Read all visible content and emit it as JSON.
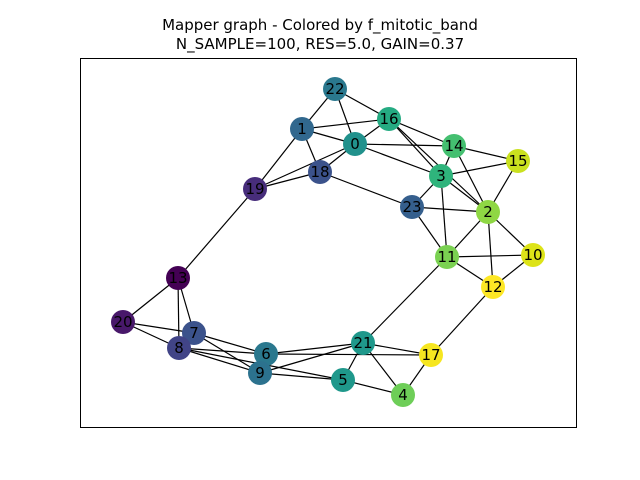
{
  "title_line_1": "Mapper graph - Colored by f_mitotic_band",
  "title_line_2": "N_SAMPLE=100, RES=5.0, GAIN=0.37",
  "nodes": [
    {
      "id": "0",
      "color": "#21918c"
    },
    {
      "id": "1",
      "color": "#31688e"
    },
    {
      "id": "2",
      "color": "#8fd744"
    },
    {
      "id": "3",
      "color": "#2fb47c"
    },
    {
      "id": "4",
      "color": "#6ece58"
    },
    {
      "id": "5",
      "color": "#1f988b"
    },
    {
      "id": "6",
      "color": "#2a788e"
    },
    {
      "id": "7",
      "color": "#3b528b"
    },
    {
      "id": "8",
      "color": "#414487"
    },
    {
      "id": "9",
      "color": "#2c728e"
    },
    {
      "id": "10",
      "color": "#dde318"
    },
    {
      "id": "11",
      "color": "#7ad151"
    },
    {
      "id": "12",
      "color": "#fde725"
    },
    {
      "id": "13",
      "color": "#440154"
    },
    {
      "id": "14",
      "color": "#44bf70"
    },
    {
      "id": "15",
      "color": "#cae11f"
    },
    {
      "id": "16",
      "color": "#25ab82"
    },
    {
      "id": "17",
      "color": "#f6e620"
    },
    {
      "id": "18",
      "color": "#3b528b"
    },
    {
      "id": "19",
      "color": "#472d7b"
    },
    {
      "id": "20",
      "color": "#48186a"
    },
    {
      "id": "21",
      "color": "#1f988b"
    },
    {
      "id": "22",
      "color": "#2a788e"
    },
    {
      "id": "23",
      "color": "#355f8d"
    }
  ],
  "edges": [
    [
      "22",
      "1"
    ],
    [
      "22",
      "16"
    ],
    [
      "22",
      "0"
    ],
    [
      "1",
      "16"
    ],
    [
      "1",
      "0"
    ],
    [
      "1",
      "18"
    ],
    [
      "1",
      "19"
    ],
    [
      "16",
      "0"
    ],
    [
      "16",
      "14"
    ],
    [
      "16",
      "3"
    ],
    [
      "16",
      "2"
    ],
    [
      "0",
      "14"
    ],
    [
      "0",
      "3"
    ],
    [
      "0",
      "18"
    ],
    [
      "0",
      "19"
    ],
    [
      "14",
      "15"
    ],
    [
      "14",
      "3"
    ],
    [
      "14",
      "2"
    ],
    [
      "3",
      "15"
    ],
    [
      "3",
      "2"
    ],
    [
      "3",
      "11"
    ],
    [
      "3",
      "23"
    ],
    [
      "15",
      "2"
    ],
    [
      "18",
      "19"
    ],
    [
      "18",
      "23"
    ],
    [
      "23",
      "2"
    ],
    [
      "23",
      "11"
    ],
    [
      "2",
      "11"
    ],
    [
      "2",
      "10"
    ],
    [
      "2",
      "12"
    ],
    [
      "11",
      "10"
    ],
    [
      "11",
      "12"
    ],
    [
      "11",
      "21"
    ],
    [
      "10",
      "12"
    ],
    [
      "12",
      "17"
    ],
    [
      "19",
      "13"
    ],
    [
      "13",
      "20"
    ],
    [
      "13",
      "7"
    ],
    [
      "13",
      "8"
    ],
    [
      "20",
      "7"
    ],
    [
      "20",
      "8"
    ],
    [
      "7",
      "8"
    ],
    [
      "7",
      "9"
    ],
    [
      "7",
      "6"
    ],
    [
      "8",
      "6"
    ],
    [
      "8",
      "9"
    ],
    [
      "8",
      "5"
    ],
    [
      "6",
      "9"
    ],
    [
      "6",
      "21"
    ],
    [
      "6",
      "17"
    ],
    [
      "9",
      "21"
    ],
    [
      "9",
      "5"
    ],
    [
      "21",
      "5"
    ],
    [
      "21",
      "4"
    ],
    [
      "21",
      "17"
    ],
    [
      "5",
      "4"
    ],
    [
      "4",
      "17"
    ]
  ]
}
